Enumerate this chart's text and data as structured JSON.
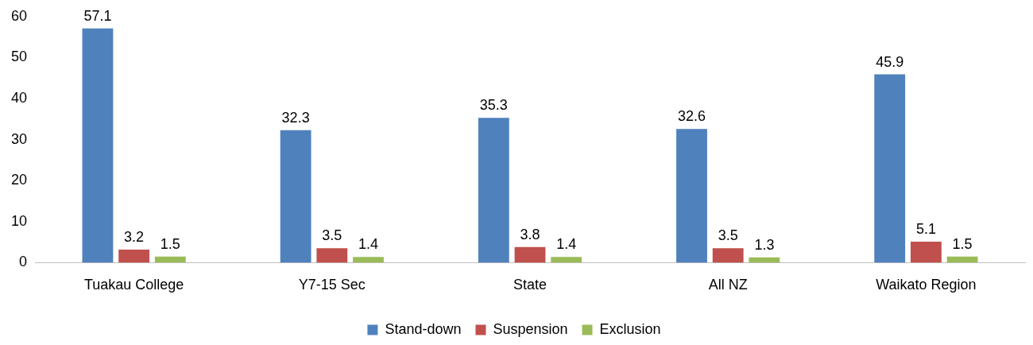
{
  "chart_data": {
    "type": "bar",
    "categories": [
      "Tuakau College",
      "Y7-15 Sec",
      "State",
      "All NZ",
      "Waikato Region"
    ],
    "series": [
      {
        "name": "Stand-down",
        "color": "#4f81bd",
        "values": [
          57.1,
          32.3,
          35.3,
          32.6,
          45.9
        ]
      },
      {
        "name": "Suspension",
        "color": "#c0504d",
        "values": [
          3.2,
          3.5,
          3.8,
          3.5,
          5.1
        ]
      },
      {
        "name": "Exclusion",
        "color": "#9bbb59",
        "values": [
          1.5,
          1.4,
          1.4,
          1.3,
          1.5
        ]
      }
    ],
    "ylim": [
      0,
      60
    ],
    "yticks": [
      0,
      10,
      20,
      30,
      40,
      50,
      60
    ],
    "grid": false,
    "legend": "bottom",
    "data_labels": true
  }
}
